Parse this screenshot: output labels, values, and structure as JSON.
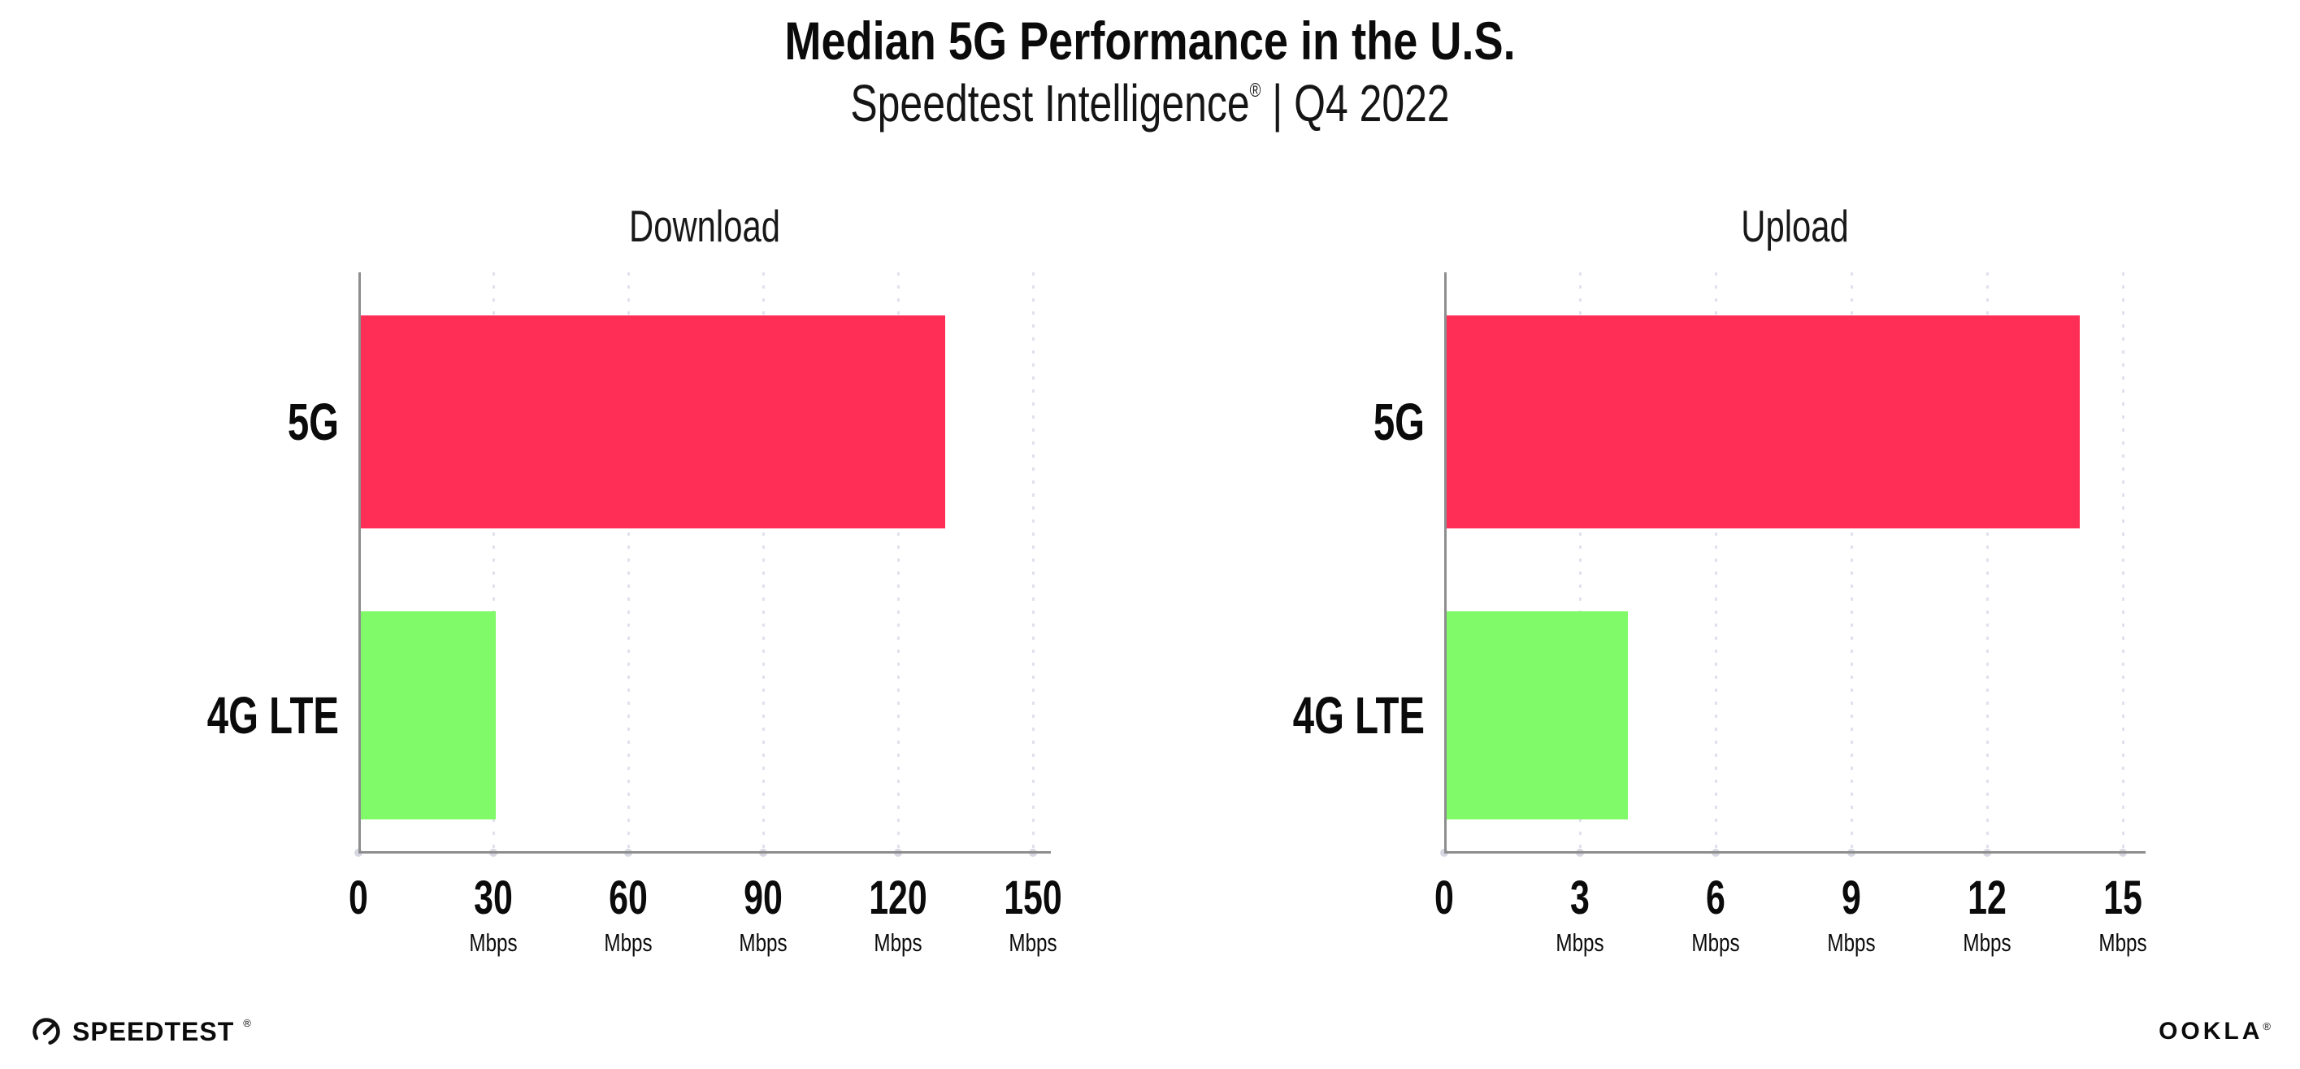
{
  "header": {
    "title": "Median 5G Performance in the U.S.",
    "subtitle_brand": "Speedtest Intelligence",
    "subtitle_reg": "®",
    "subtitle_rest": " | Q4 2022"
  },
  "colors": {
    "bar_5g": "#FF2E56",
    "bar_4g": "#80FA68",
    "axis": "#8e8e8e",
    "gridline": "#e1e1ed",
    "text": "#0b0b0b"
  },
  "chart_data": [
    {
      "type": "bar",
      "orientation": "horizontal",
      "title": "Download",
      "categories": [
        "5G",
        "4G LTE"
      ],
      "values": [
        130,
        30
      ],
      "unit": "Mbps",
      "xticks": [
        0,
        30,
        60,
        90,
        120,
        150
      ],
      "xlim": [
        0,
        154
      ],
      "grid": "dotted-vertical",
      "legend": "none"
    },
    {
      "type": "bar",
      "orientation": "horizontal",
      "title": "Upload",
      "categories": [
        "5G",
        "4G LTE"
      ],
      "values": [
        14,
        4
      ],
      "unit": "Mbps",
      "xticks": [
        0,
        3,
        6,
        9,
        12,
        15
      ],
      "xlim": [
        0,
        15.5
      ],
      "grid": "dotted-vertical",
      "legend": "none"
    }
  ],
  "footer": {
    "speedtest_label": "SPEEDTEST",
    "speedtest_mark": "®",
    "speedtest_icon": "gauge-icon",
    "ookla_label": "OOKLA",
    "ookla_mark": "®"
  }
}
